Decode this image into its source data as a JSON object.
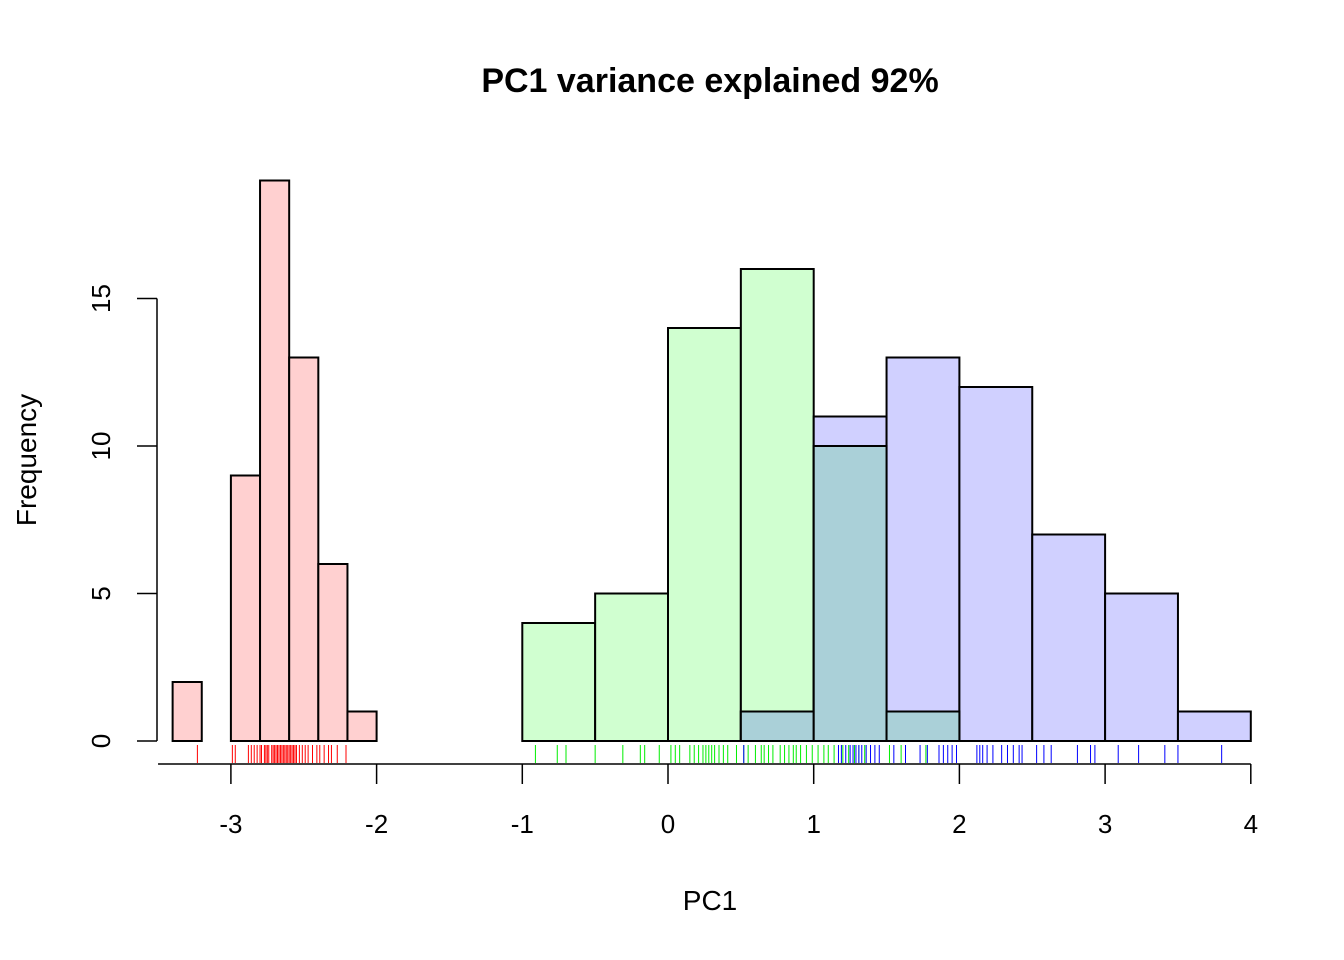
{
  "chart_data": {
    "type": "bar",
    "title": "PC1 variance explained 92%",
    "xlabel": "PC1",
    "ylabel": "Frequency",
    "xlim": [
      -3.5,
      4
    ],
    "ylim": [
      0,
      19
    ],
    "x_ticks": [
      -3,
      -2,
      -1,
      0,
      1,
      2,
      3,
      4
    ],
    "y_ticks": [
      0,
      5,
      10,
      15
    ],
    "grid": false,
    "series": [
      {
        "color": "#ffd0d0",
        "rug_color": "#ff0000",
        "bin_width": 0.2,
        "bins": [
          {
            "start": -3.4,
            "end": -3.2,
            "count": 2
          },
          {
            "start": -3.2,
            "end": -3.0,
            "count": 0
          },
          {
            "start": -3.0,
            "end": -2.8,
            "count": 9
          },
          {
            "start": -2.8,
            "end": -2.6,
            "count": 19
          },
          {
            "start": -2.6,
            "end": -2.4,
            "count": 13
          },
          {
            "start": -2.4,
            "end": -2.2,
            "count": 6
          },
          {
            "start": -2.2,
            "end": -2.0,
            "count": 1
          }
        ],
        "rug": [
          -3.23,
          -2.99,
          -2.97,
          -2.88,
          -2.86,
          -2.84,
          -2.82,
          -2.8,
          -2.79,
          -2.77,
          -2.76,
          -2.75,
          -2.74,
          -2.72,
          -2.71,
          -2.7,
          -2.69,
          -2.68,
          -2.67,
          -2.66,
          -2.65,
          -2.64,
          -2.63,
          -2.62,
          -2.61,
          -2.6,
          -2.59,
          -2.58,
          -2.57,
          -2.56,
          -2.55,
          -2.53,
          -2.51,
          -2.49,
          -2.47,
          -2.44,
          -2.41,
          -2.39,
          -2.36,
          -2.33,
          -2.31,
          -2.27,
          -2.21
        ]
      },
      {
        "color": "#d0ffd0",
        "rug_color": "#00ee00",
        "bin_width": 0.5,
        "bins": [
          {
            "start": -1.0,
            "end": -0.5,
            "count": 4
          },
          {
            "start": -0.5,
            "end": 0.0,
            "count": 5
          },
          {
            "start": 0.0,
            "end": 0.5,
            "count": 14
          },
          {
            "start": 0.5,
            "end": 1.0,
            "count": 16
          },
          {
            "start": 1.0,
            "end": 1.5,
            "count": 10
          },
          {
            "start": 1.5,
            "end": 2.0,
            "count": 1
          }
        ],
        "rug": [
          -0.91,
          -0.76,
          -0.7,
          -0.5,
          -0.31,
          -0.19,
          -0.16,
          -0.06,
          0.02,
          0.05,
          0.08,
          0.15,
          0.18,
          0.21,
          0.24,
          0.26,
          0.28,
          0.3,
          0.32,
          0.35,
          0.38,
          0.41,
          0.47,
          0.52,
          0.55,
          0.6,
          0.64,
          0.66,
          0.69,
          0.72,
          0.77,
          0.8,
          0.83,
          0.86,
          0.88,
          0.91,
          0.95,
          0.99,
          1.03,
          1.07,
          1.1,
          1.14,
          1.2,
          1.24,
          1.28,
          1.31,
          1.35,
          1.52,
          1.6,
          1.77
        ]
      },
      {
        "color": "#d0d0ff",
        "rug_color": "#0000ff",
        "bin_width": 0.5,
        "bins": [
          {
            "start": 0.5,
            "end": 1.0,
            "count": 1
          },
          {
            "start": 1.0,
            "end": 1.5,
            "count": 11
          },
          {
            "start": 1.5,
            "end": 2.0,
            "count": 13
          },
          {
            "start": 2.0,
            "end": 2.5,
            "count": 12
          },
          {
            "start": 2.5,
            "end": 3.0,
            "count": 7
          },
          {
            "start": 3.0,
            "end": 3.5,
            "count": 5
          },
          {
            "start": 3.5,
            "end": 4.0,
            "count": 1
          }
        ],
        "rug": [
          0.52,
          1.17,
          1.19,
          1.22,
          1.25,
          1.27,
          1.29,
          1.31,
          1.33,
          1.36,
          1.39,
          1.42,
          1.45,
          1.55,
          1.63,
          1.73,
          1.78,
          1.86,
          1.89,
          1.92,
          1.95,
          1.98,
          2.12,
          2.14,
          2.16,
          2.19,
          2.23,
          2.29,
          2.33,
          2.37,
          2.41,
          2.43,
          2.53,
          2.58,
          2.63,
          2.81,
          2.9,
          2.93,
          3.09,
          3.23,
          3.41,
          3.5,
          3.8
        ]
      }
    ],
    "overlap": {
      "color": "#aad0d8",
      "bins": [
        {
          "start": 0.5,
          "end": 1.0,
          "count": 1
        },
        {
          "start": 1.0,
          "end": 1.5,
          "count": 10
        },
        {
          "start": 1.5,
          "end": 2.0,
          "count": 1
        }
      ]
    }
  }
}
